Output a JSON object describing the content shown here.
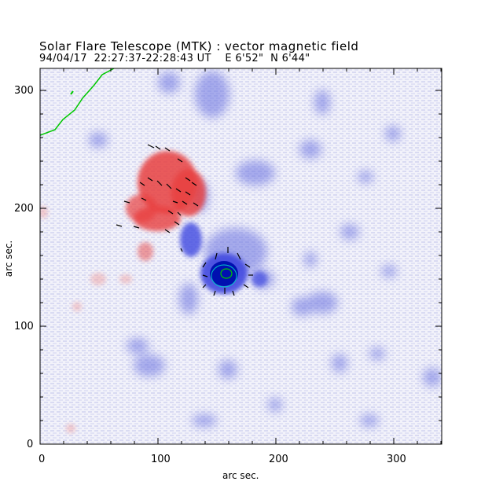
{
  "title": {
    "line1": "Solar Flare Telescope (MTK) : vector magnetic field",
    "line2": "94/04/17  22:27:37-22:28:43 UT    E 6'52\"  N 6'44\""
  },
  "axes": {
    "xlabel": "arc sec.",
    "ylabel": "arc sec.",
    "xlim": [
      0,
      340
    ],
    "ylim": [
      0,
      320
    ],
    "xticks": [
      "0",
      "100",
      "200",
      "300"
    ],
    "yticks": [
      "0",
      "100",
      "200",
      "300"
    ]
  },
  "colors": {
    "negative_polarity": "#3c46e6",
    "positive_polarity": "#e63232",
    "background": "#dcdcf0",
    "contour": "#00c800",
    "vectors": "#000000"
  }
}
